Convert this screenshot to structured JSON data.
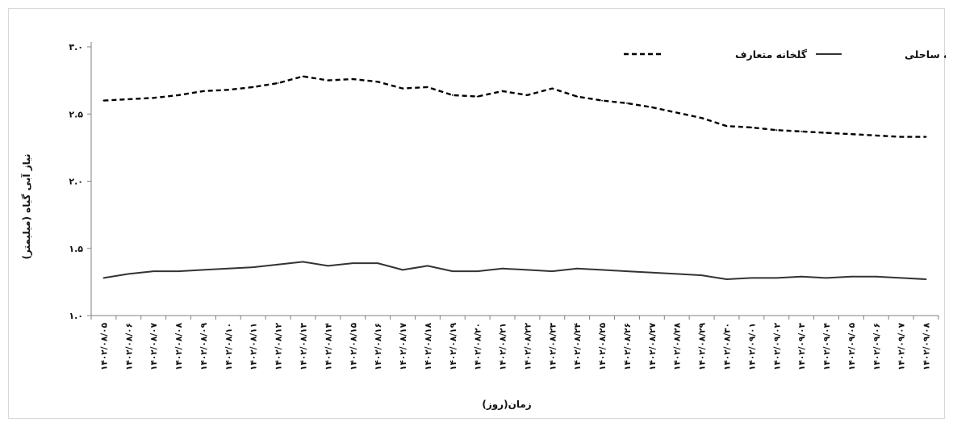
{
  "chart_data": {
    "type": "line",
    "title": "",
    "xlabel": "زمان(روز)",
    "ylabel": "نیاز آبی گیاه (میلیمتر)",
    "ylim": [
      1.0,
      3.0
    ],
    "yticks": [
      1.0,
      1.5,
      2.0,
      2.5,
      3.0
    ],
    "ytick_labels": [
      "۱.۰",
      "۱.۵",
      "۲.۰",
      "۲.۵",
      "۳.۰"
    ],
    "legend_position": "top-right",
    "grid": false,
    "x": [
      "۱۴۰۲/۰۸/۰۵",
      "۱۴۰۲/۰۸/۰۶",
      "۱۴۰۲/۰۸/۰۷",
      "۱۴۰۲/۰۸/۰۸",
      "۱۴۰۲/۰۸/۰۹",
      "۱۴۰۲/۰۸/۱۰",
      "۱۴۰۲/۰۸/۱۱",
      "۱۴۰۲/۰۸/۱۲",
      "۱۴۰۲/۰۸/۱۳",
      "۱۴۰۲/۰۸/۱۴",
      "۱۴۰۲/۰۸/۱۵",
      "۱۴۰۲/۰۸/۱۶",
      "۱۴۰۲/۰۸/۱۷",
      "۱۴۰۲/۰۸/۱۸",
      "۱۴۰۲/۰۸/۱۹",
      "۱۴۰۲/۰۸/۲۰",
      "۱۴۰۲/۰۸/۲۱",
      "۱۴۰۲/۰۸/۲۲",
      "۱۴۰۲/۰۸/۲۳",
      "۱۴۰۲/۰۸/۲۴",
      "۱۴۰۲/۰۸/۲۵",
      "۱۴۰۲/۰۸/۲۶",
      "۱۴۰۲/۰۸/۲۷",
      "۱۴۰۲/۰۸/۲۸",
      "۱۴۰۲/۰۸/۲۹",
      "۱۴۰۲/۰۸/۳۰",
      "۱۴۰۲/۰۹/۰۱",
      "۱۴۰۲/۰۹/۰۲",
      "۱۴۰۲/۰۹/۰۳",
      "۱۴۰۲/۰۹/۰۴",
      "۱۴۰۲/۰۹/۰۵",
      "۱۴۰۲/۰۹/۰۶",
      "۱۴۰۲/۰۹/۰۷",
      "۱۴۰۲/۰۹/۰۸"
    ],
    "series": [
      {
        "name": "گلخانه متعارف",
        "style": "dashed",
        "color": "#000000",
        "values": [
          2.6,
          2.61,
          2.62,
          2.64,
          2.67,
          2.68,
          2.7,
          2.73,
          2.78,
          2.75,
          2.76,
          2.74,
          2.69,
          2.7,
          2.64,
          2.63,
          2.67,
          2.64,
          2.69,
          2.63,
          2.6,
          2.58,
          2.55,
          2.51,
          2.47,
          2.41,
          2.4,
          2.38,
          2.37,
          2.36,
          2.35,
          2.34,
          2.33,
          2.33
        ]
      },
      {
        "name": "گلخانه ساحلی",
        "style": "solid",
        "color": "#333333",
        "values": [
          1.28,
          1.31,
          1.33,
          1.33,
          1.34,
          1.35,
          1.36,
          1.38,
          1.4,
          1.37,
          1.39,
          1.39,
          1.34,
          1.37,
          1.33,
          1.33,
          1.35,
          1.34,
          1.33,
          1.35,
          1.34,
          1.33,
          1.32,
          1.31,
          1.3,
          1.27,
          1.28,
          1.28,
          1.29,
          1.28,
          1.29,
          1.29,
          1.28,
          1.27
        ]
      }
    ]
  }
}
